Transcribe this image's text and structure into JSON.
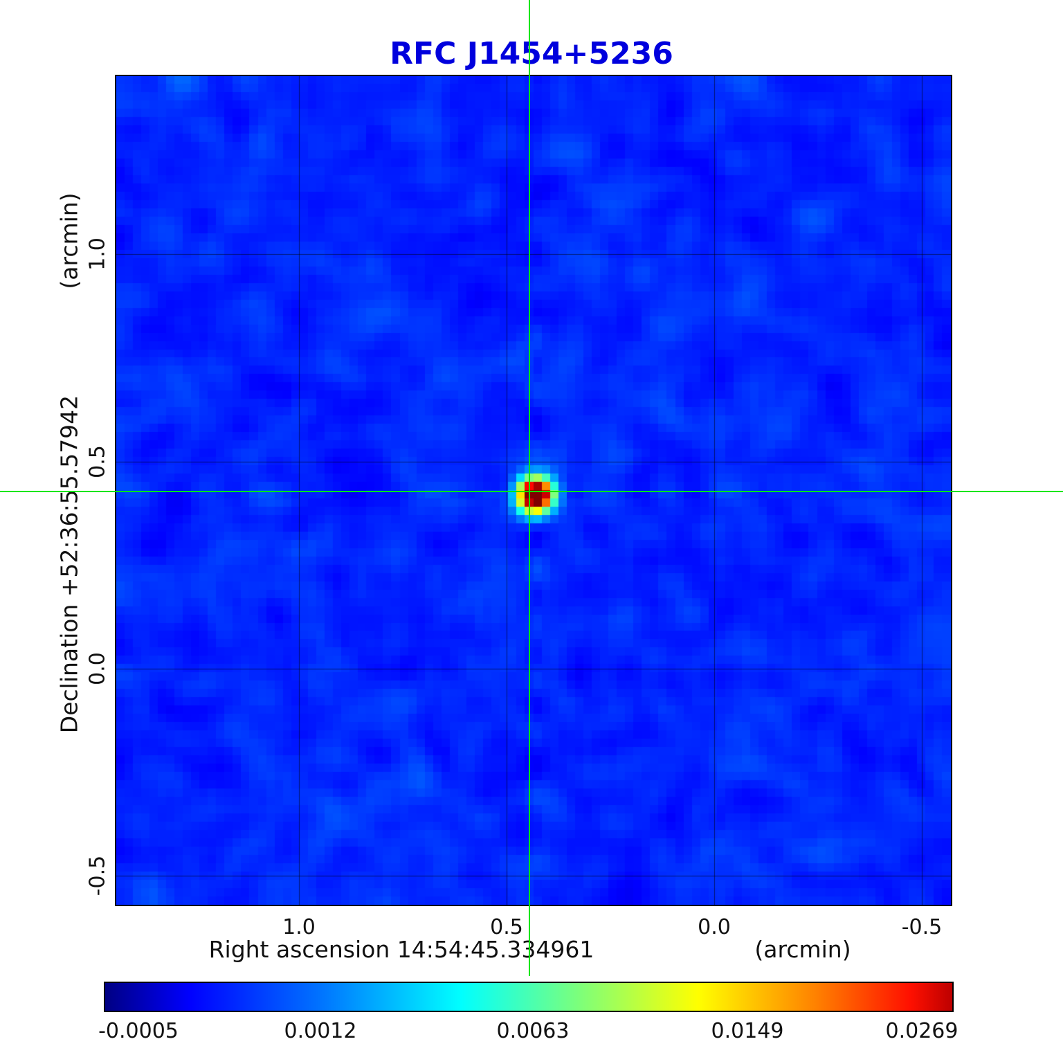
{
  "title": "RFC J1454+5236",
  "colors": {
    "title": "#0000dd",
    "crosshair": "#00e600",
    "grid": "rgba(0,0,0,0.55)",
    "background_field": "#0040dd"
  },
  "axes": {
    "y_unit_label": "(arcmin)",
    "y_axis_label": "Declination  +52:36:55.57942",
    "x_axis_label": "Right ascension  14:54:45.334961",
    "x_unit_label": "(arcmin)",
    "x_ticks": [
      "1.0",
      "0.5",
      "0.0",
      "-0.5"
    ],
    "y_ticks": [
      "1.0",
      "0.5",
      "0.0",
      "-0.5"
    ]
  },
  "colorbar": {
    "ticks": [
      "-0.0005",
      "0.0012",
      "0.0063",
      "0.0149",
      "0.0269"
    ]
  },
  "chart_data": {
    "type": "heatmap",
    "title": "RFC J1454+5236",
    "xlabel": "Right ascension 14:54:45.334961 (arcmin)",
    "ylabel": "Declination +52:36:55.57942 (arcmin)",
    "x_range": [
      1.44,
      -0.57
    ],
    "y_range": [
      1.43,
      -0.57
    ],
    "x_tick_values": [
      1.0,
      0.5,
      0.0,
      -0.5
    ],
    "y_tick_values": [
      1.0,
      0.5,
      0.0,
      -0.5
    ],
    "grid": true,
    "colormap": "jet",
    "colorbar_tick_values": [
      -0.0005,
      0.0012,
      0.0063,
      0.0149,
      0.0269
    ],
    "intensity_min": -0.0005,
    "intensity_max": 0.0269,
    "background_noise_level": 0.001,
    "source": {
      "name": "RFC J1454+5236",
      "ra_offset_arcmin": 0.44,
      "dec_offset_arcmin": 0.43,
      "peak_intensity": 0.0269
    },
    "crosshair_center": {
      "ra_offset_arcmin": 0.44,
      "dec_offset_arcmin": 0.43
    }
  }
}
